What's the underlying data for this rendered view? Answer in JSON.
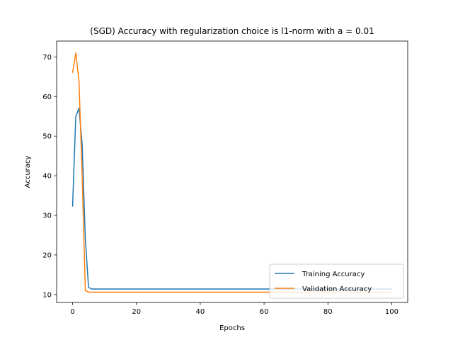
{
  "chart_data": {
    "type": "line",
    "title": "(SGD) Accuracy with regularization choice is l1-norm with a = 0.01",
    "xlabel": "Epochs",
    "ylabel": "Accuracy",
    "xlim": [
      -5,
      105
    ],
    "ylim": [
      8,
      74
    ],
    "xticks": [
      0,
      20,
      40,
      60,
      80,
      100
    ],
    "yticks": [
      10,
      20,
      30,
      40,
      50,
      60,
      70
    ],
    "legend_position": "lower right",
    "series": [
      {
        "name": "Training Accuracy",
        "color": "#1f77b4",
        "x": [
          0,
          1,
          2,
          3,
          4,
          5,
          6,
          7,
          100
        ],
        "y": [
          32.2,
          55.0,
          57.0,
          48.0,
          24.0,
          11.8,
          11.4,
          11.4,
          11.4
        ]
      },
      {
        "name": "Validation Accuracy",
        "color": "#ff7f0e",
        "x": [
          0,
          1,
          2,
          3,
          4,
          5,
          6,
          100
        ],
        "y": [
          66.0,
          71.0,
          64.0,
          40.0,
          11.0,
          10.6,
          10.6,
          10.6
        ]
      }
    ]
  }
}
